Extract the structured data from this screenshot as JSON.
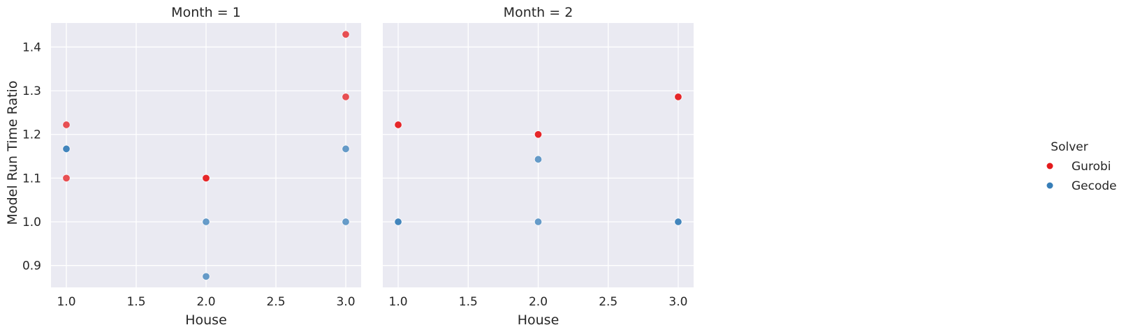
{
  "chart_data": {
    "type": "scatter",
    "ylabel": "Model Run Time Ratio",
    "ylim": [
      0.85,
      1.455
    ],
    "yticks": [
      "0.9",
      "1.0",
      "1.1",
      "1.2",
      "1.3",
      "1.4"
    ],
    "xlim": [
      0.89,
      3.11
    ],
    "xticks": [
      "1.0",
      "1.5",
      "2.0",
      "2.5",
      "3.0"
    ],
    "grid": true,
    "legend": {
      "title": "Solver",
      "placement": "right",
      "entries": [
        {
          "name": "Gurobi",
          "color": "#e41a1c"
        },
        {
          "name": "Gecode",
          "color": "#377eb8"
        }
      ]
    },
    "facets": [
      {
        "title": "Month = 1",
        "xlabel": "House",
        "series": [
          {
            "name": "Gurobi",
            "color": "#e41a1c",
            "points": [
              [
                1.0,
                1.222
              ],
              [
                1.0,
                1.1
              ],
              [
                2.0,
                1.1
              ],
              [
                2.0,
                1.1
              ],
              [
                3.0,
                1.429
              ],
              [
                3.0,
                1.286
              ]
            ]
          },
          {
            "name": "Gecode",
            "color": "#377eb8",
            "points": [
              [
                1.0,
                1.167
              ],
              [
                1.0,
                1.167
              ],
              [
                2.0,
                1.0
              ],
              [
                2.0,
                0.875
              ],
              [
                3.0,
                1.167
              ],
              [
                3.0,
                1.0
              ]
            ]
          }
        ]
      },
      {
        "title": "Month = 2",
        "xlabel": "House",
        "series": [
          {
            "name": "Gurobi",
            "color": "#e41a1c",
            "points": [
              [
                1.0,
                1.222
              ],
              [
                1.0,
                1.222
              ],
              [
                2.0,
                1.2
              ],
              [
                2.0,
                1.2
              ],
              [
                3.0,
                1.286
              ],
              [
                3.0,
                1.286
              ]
            ]
          },
          {
            "name": "Gecode",
            "color": "#377eb8",
            "points": [
              [
                1.0,
                1.0
              ],
              [
                1.0,
                1.0
              ],
              [
                2.0,
                1.143
              ],
              [
                2.0,
                1.0
              ],
              [
                3.0,
                1.0
              ],
              [
                3.0,
                1.0
              ]
            ]
          }
        ]
      }
    ]
  }
}
